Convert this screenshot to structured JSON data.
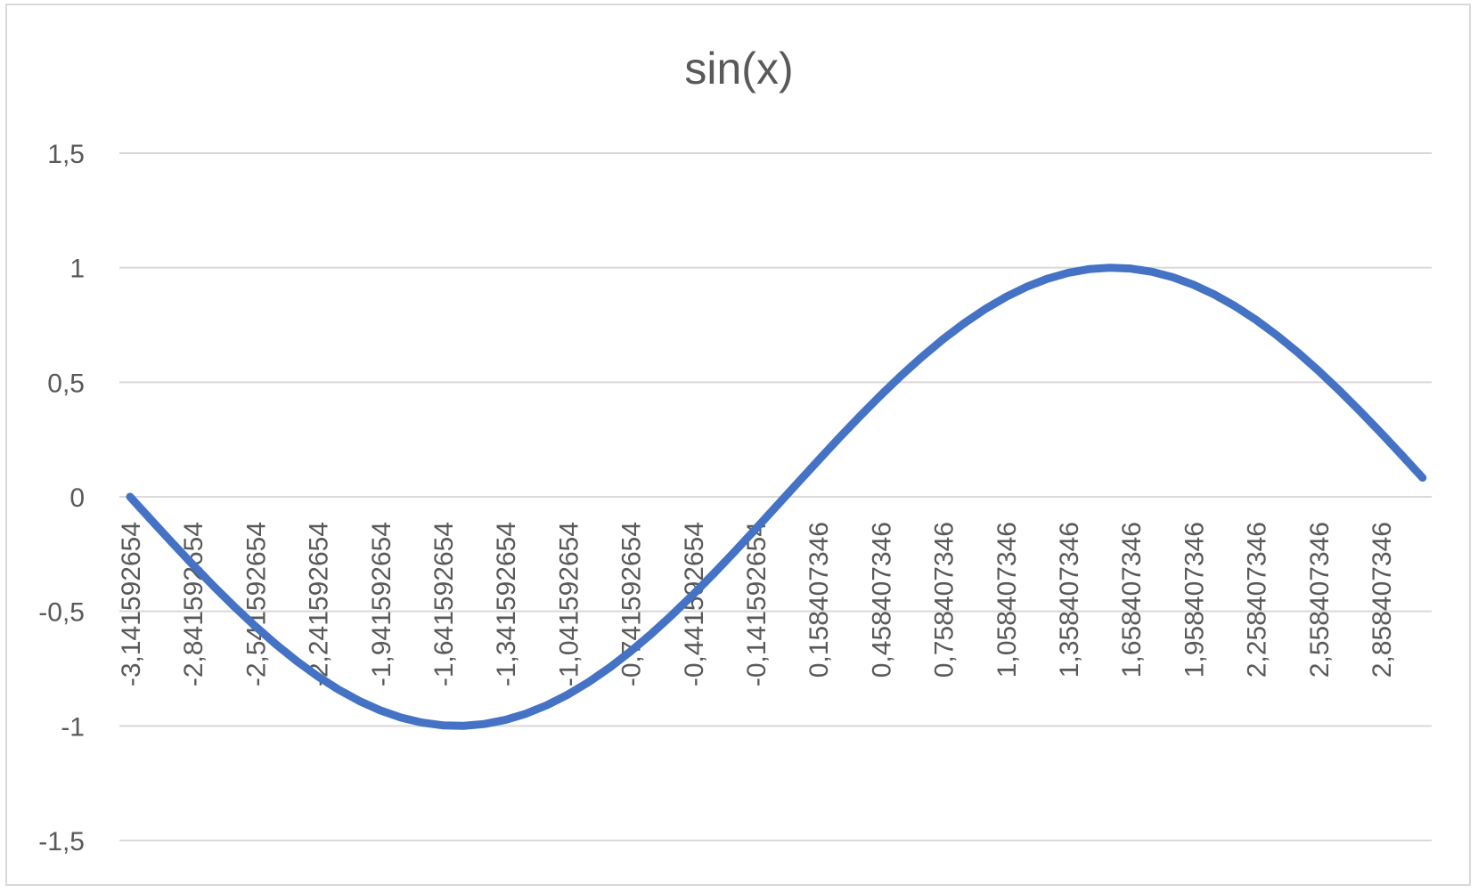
{
  "chart_data": {
    "type": "line",
    "title": "sin(x)",
    "xlabel": "",
    "ylabel": "",
    "ylim": [
      -1.5,
      1.5
    ],
    "y_ticks": [
      "1,5",
      "1",
      "0,5",
      "0",
      "-0,5",
      "-1",
      "-1,5"
    ],
    "y_tick_values": [
      1.5,
      1,
      0.5,
      0,
      -0.5,
      -1,
      -1.5
    ],
    "x_tick_labels": [
      "-3,141592654",
      "-2,841592654",
      "-2,541592654",
      "-2,241592654",
      "-1,941592654",
      "-1,641592654",
      "-1,341592654",
      "-1,041592654",
      "-0,741592654",
      "-0,441592654",
      "-0,141592654",
      "0,158407346",
      "0,458407346",
      "0,758407346",
      "1,058407346",
      "1,358407346",
      "1,658407346",
      "1,958407346",
      "2,258407346",
      "2,558407346",
      "2,858407346"
    ],
    "x_start": -3.141592654,
    "x_step": 0.1,
    "x_count": 63,
    "grid": true,
    "legend": "none",
    "series": [
      {
        "color": "#4472c4",
        "function": "sin"
      }
    ]
  },
  "colors": {
    "line": "#4472c4",
    "grid": "#d9d9d9",
    "text": "#595959",
    "border": "#d9d9d9"
  }
}
